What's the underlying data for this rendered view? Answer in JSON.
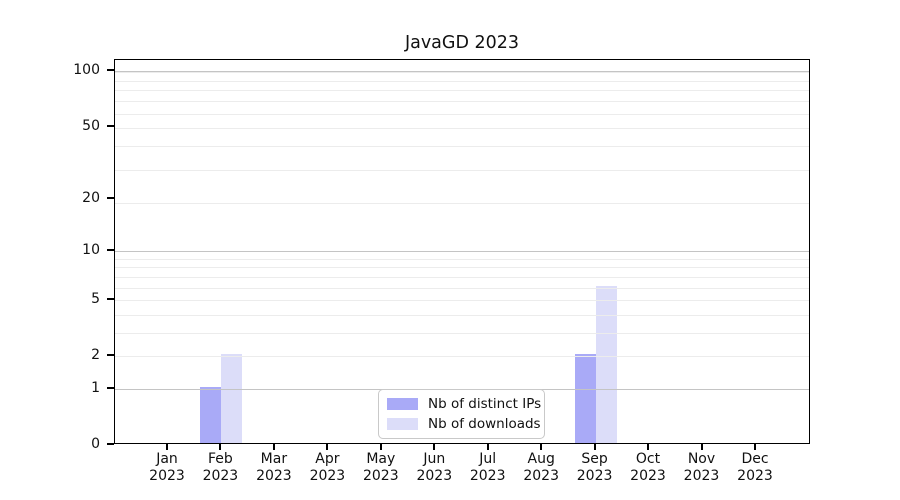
{
  "chart_data": {
    "type": "bar",
    "title": "JavaGD 2023",
    "categories": [
      {
        "month": "Jan",
        "year": "2023"
      },
      {
        "month": "Feb",
        "year": "2023"
      },
      {
        "month": "Mar",
        "year": "2023"
      },
      {
        "month": "Apr",
        "year": "2023"
      },
      {
        "month": "May",
        "year": "2023"
      },
      {
        "month": "Jun",
        "year": "2023"
      },
      {
        "month": "Jul",
        "year": "2023"
      },
      {
        "month": "Aug",
        "year": "2023"
      },
      {
        "month": "Sep",
        "year": "2023"
      },
      {
        "month": "Oct",
        "year": "2023"
      },
      {
        "month": "Nov",
        "year": "2023"
      },
      {
        "month": "Dec",
        "year": "2023"
      }
    ],
    "series": [
      {
        "name": "Nb of distinct IPs",
        "color": "#a9aaf7",
        "values": [
          0,
          1,
          0,
          0,
          0,
          0,
          0,
          0,
          2,
          0,
          0,
          0
        ]
      },
      {
        "name": "Nb of downloads",
        "color": "#dcddf9",
        "values": [
          0,
          2,
          0,
          0,
          0,
          0,
          0,
          0,
          6,
          0,
          0,
          0
        ]
      }
    ],
    "y_axis": {
      "scale": "log1p",
      "ticks": [
        0,
        1,
        2,
        5,
        10,
        20,
        50,
        100
      ],
      "ylim": [
        0,
        115
      ],
      "major_grid_values": [
        1,
        10,
        100
      ],
      "grid_minor_color": "#ececec",
      "grid_major_color": "#c4c4c4"
    },
    "legend": {
      "position": "inside-bottom-center",
      "entries": [
        "Nb of distinct IPs",
        "Nb of downloads"
      ]
    },
    "xlabel": "",
    "ylabel": ""
  }
}
